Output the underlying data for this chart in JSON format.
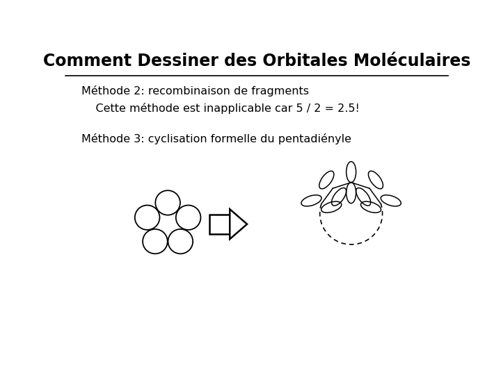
{
  "title": "Comment Dessiner des Orbitales Moléculaires",
  "line1": "Méthode 2: recombinaison de fragments",
  "line2": "    Cette méthode est inapplicable car 5 / 2 = 2.5!",
  "line3": "Méthode 3: cyclisation formelle du pentadiényle",
  "bg_color": "#ffffff",
  "title_fontsize": 17,
  "text_fontsize": 11.5
}
